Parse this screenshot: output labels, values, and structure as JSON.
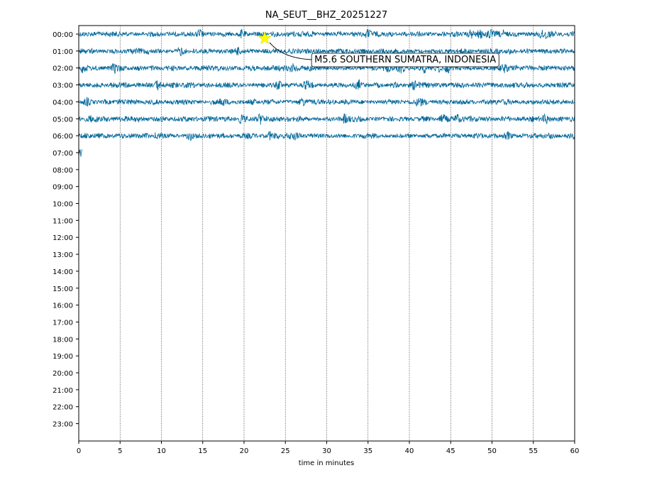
{
  "chart_data": {
    "type": "line",
    "title": "NA_SEUT__BHZ_20251227",
    "xlabel": "time in minutes",
    "ylabel": "",
    "xlim": [
      0,
      60
    ],
    "x_ticks": [
      "0",
      "5",
      "10",
      "15",
      "20",
      "25",
      "30",
      "35",
      "40",
      "45",
      "50",
      "55",
      "60"
    ],
    "y_tick_labels": [
      "00:00",
      "01:00",
      "02:00",
      "03:00",
      "04:00",
      "05:00",
      "06:00",
      "07:00",
      "08:00",
      "09:00",
      "10:00",
      "11:00",
      "12:00",
      "13:00",
      "14:00",
      "15:00",
      "16:00",
      "17:00",
      "18:00",
      "19:00",
      "20:00",
      "21:00",
      "22:00",
      "23:00"
    ],
    "vertical_grid": "dotted",
    "trace_color": "#00679a",
    "traces": [
      {
        "hour": "00:00",
        "start_min": 0,
        "end_min": 60
      },
      {
        "hour": "01:00",
        "start_min": 0,
        "end_min": 60
      },
      {
        "hour": "02:00",
        "start_min": 0,
        "end_min": 60
      },
      {
        "hour": "03:00",
        "start_min": 0,
        "end_min": 60
      },
      {
        "hour": "04:00",
        "start_min": 0,
        "end_min": 60
      },
      {
        "hour": "05:00",
        "start_min": 0,
        "end_min": 60
      },
      {
        "hour": "06:00",
        "start_min": 0,
        "end_min": 60
      },
      {
        "hour": "07:00",
        "start_min": 0,
        "end_min": 0.4
      }
    ],
    "event": {
      "label": "M5.6 SOUTHERN SUMATRA, INDONESIA",
      "hour": "00:00",
      "minute": 22.5,
      "marker": "star",
      "marker_color": "#ffff00"
    }
  }
}
